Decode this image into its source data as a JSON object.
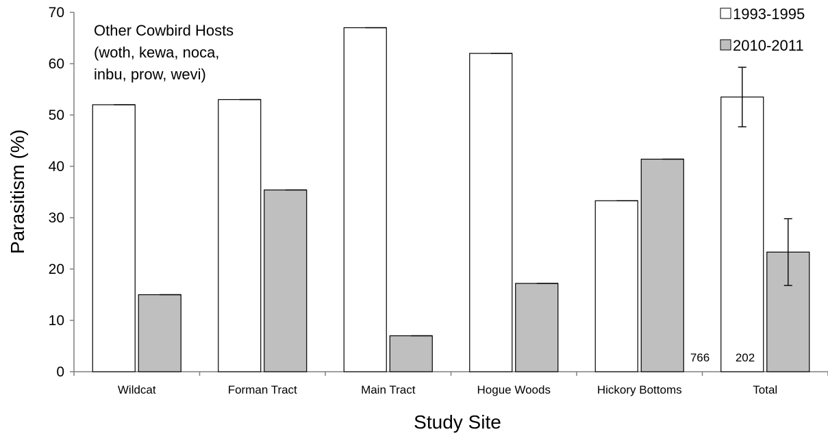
{
  "chart_data": {
    "type": "bar",
    "xlabel": "Study Site",
    "ylabel": "Parasitism (%)",
    "ylim": [
      0,
      70
    ],
    "yticks": [
      "0",
      "10",
      "20",
      "30",
      "40",
      "50",
      "60",
      "70"
    ],
    "grid": false,
    "legend_position": "top-right",
    "categories": [
      "Wildcat",
      "Forman Tract",
      "Main Tract",
      "Hogue Woods",
      "Hickory Bottoms",
      "Total"
    ],
    "series": [
      {
        "name": "1993-1995",
        "color": "#ffffff",
        "values": [
          52,
          53,
          67,
          62,
          33.3,
          53.5
        ],
        "error": [
          0,
          0,
          0,
          0,
          0,
          5.8
        ]
      },
      {
        "name": "2010-2011",
        "color": "#bfbfbf",
        "values": [
          15,
          35.4,
          7,
          17.2,
          41.4,
          23.3
        ],
        "error": [
          0,
          0,
          0,
          0,
          0,
          6.5
        ]
      }
    ],
    "annotation_lines": [
      "Other Cowbird Hosts",
      "(woth, kewa, noca,",
      "inbu, prow, wevi)"
    ],
    "sample_sizes": [
      "766",
      "202"
    ]
  }
}
